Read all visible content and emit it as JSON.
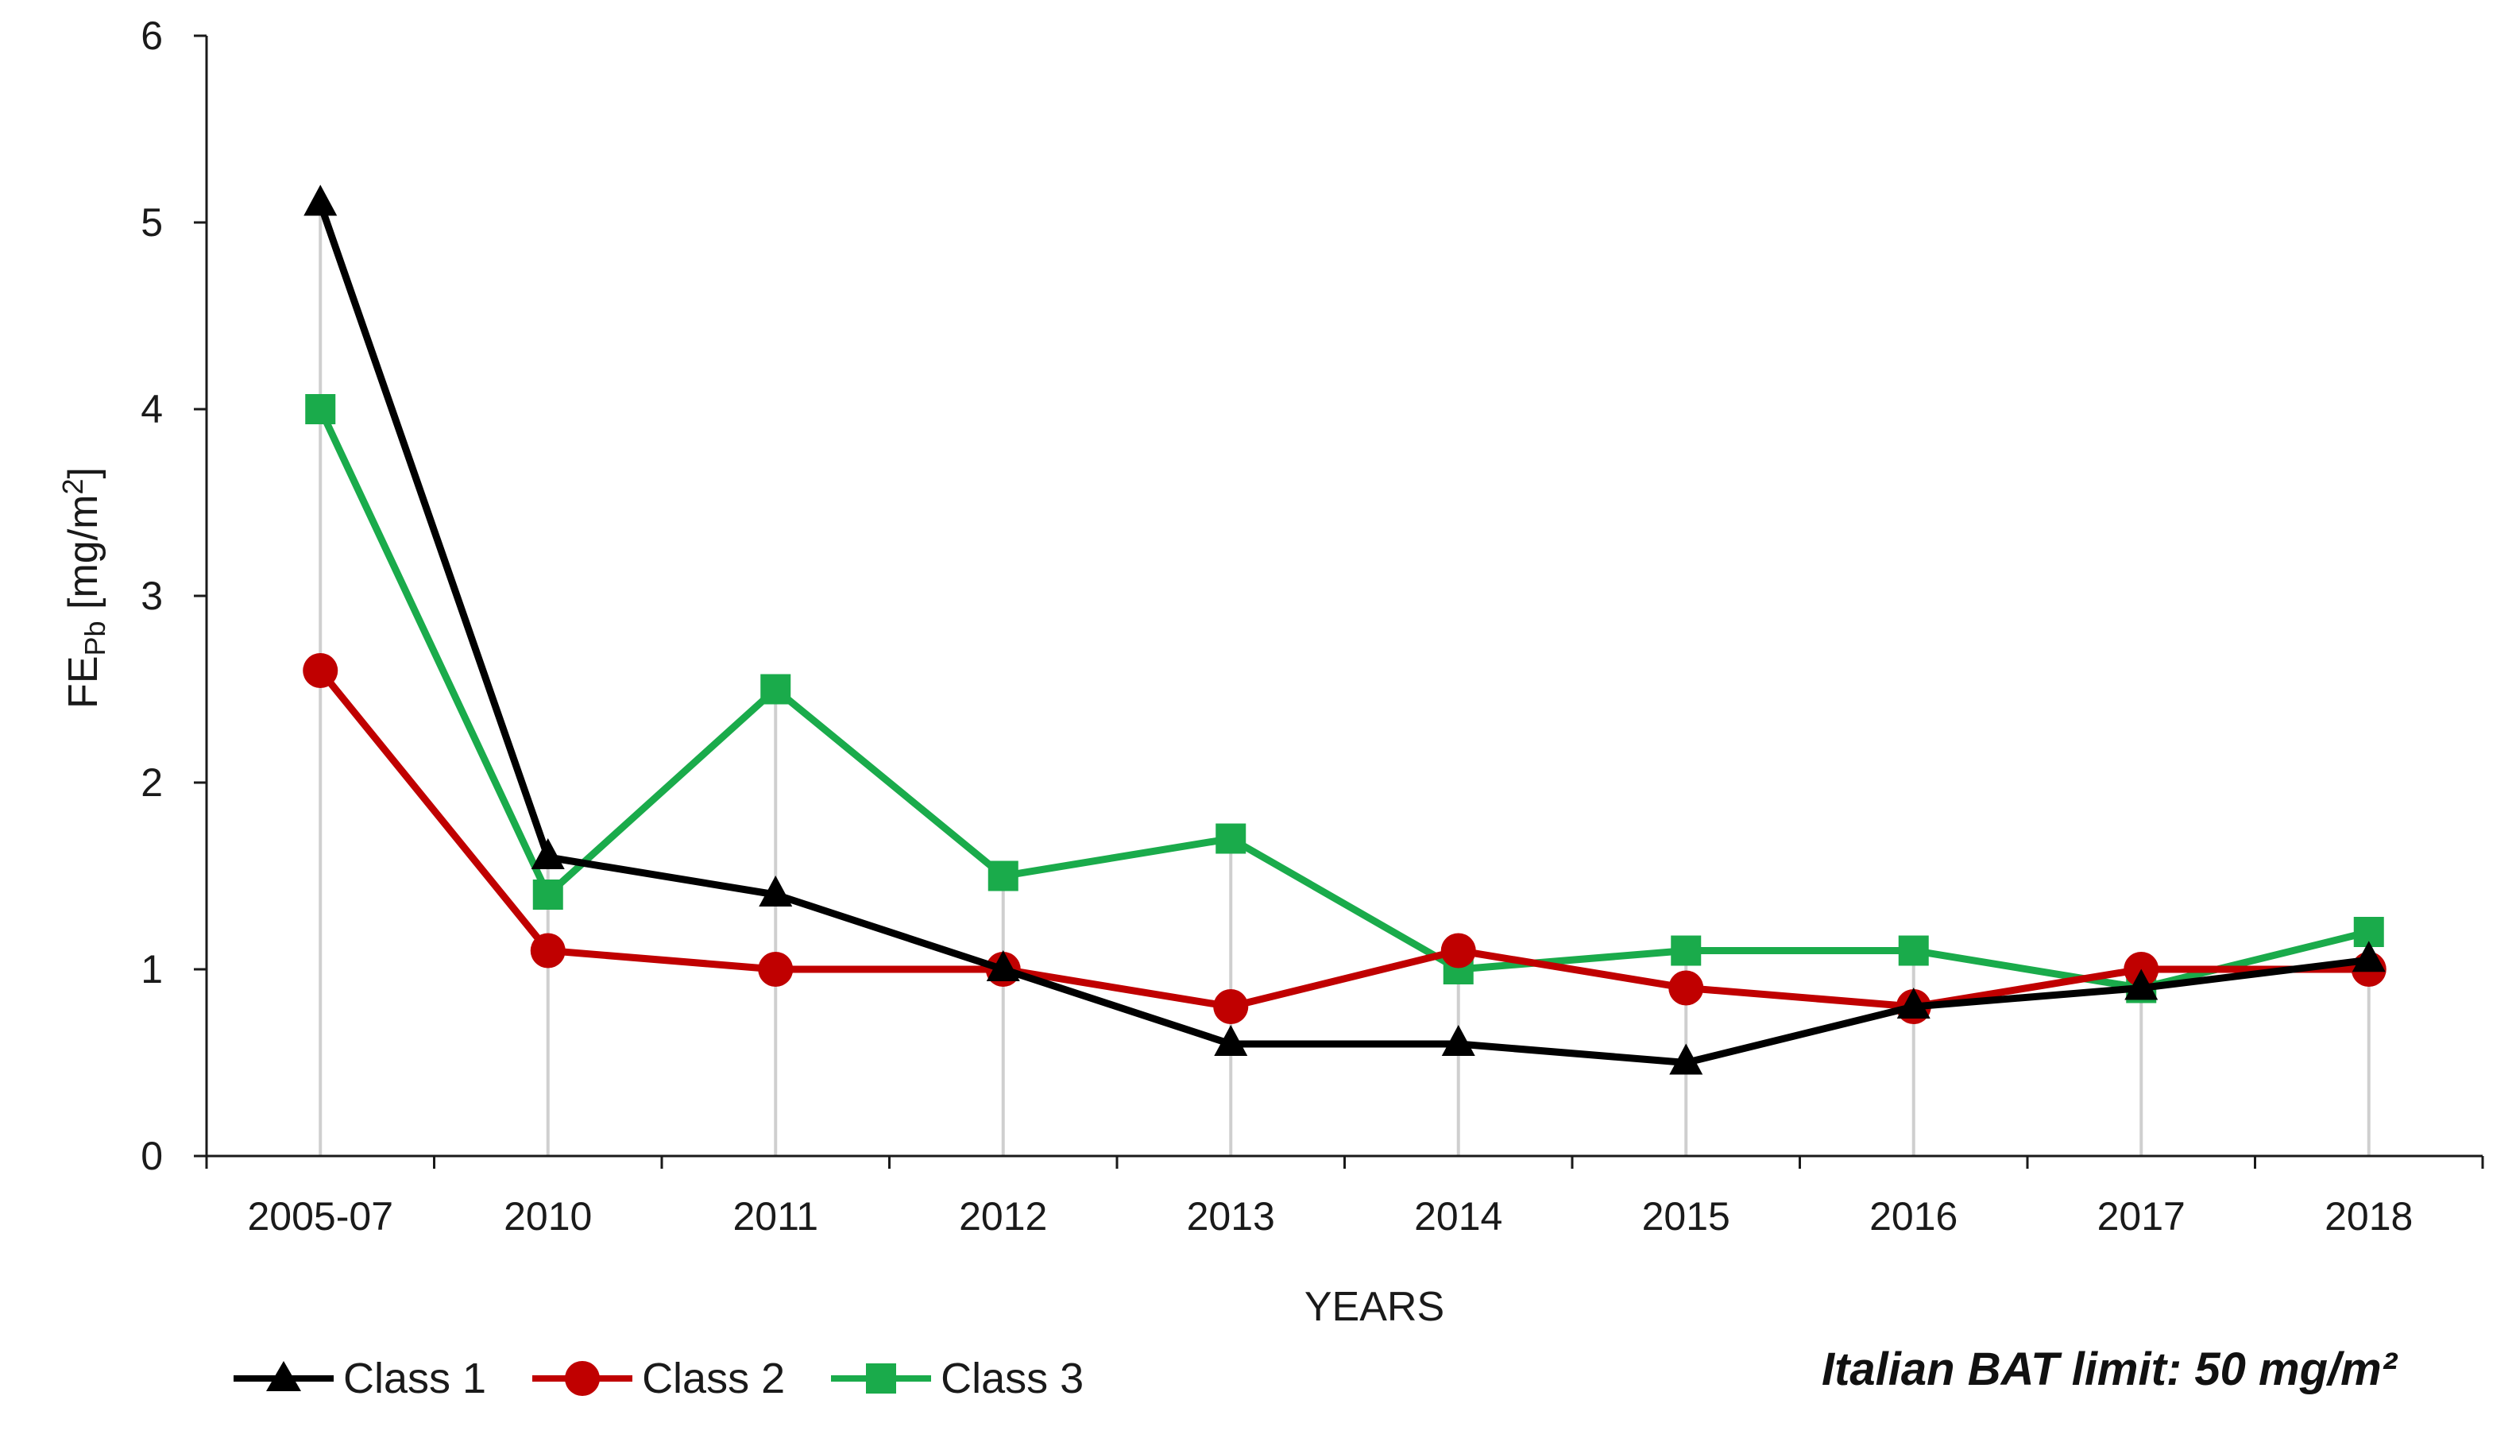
{
  "chart_data": {
    "type": "line",
    "title": "",
    "xlabel": "YEARS",
    "ylabel": {
      "main": "FE",
      "sub": "Pb",
      "unit_open": " [mg/m",
      "unit_sup": "2",
      "unit_close": "]"
    },
    "categories": [
      "2005-07",
      "2010",
      "2011",
      "2012",
      "2013",
      "2014",
      "2015",
      "2016",
      "2017",
      "2018"
    ],
    "ylim": [
      0,
      6
    ],
    "yticks": [
      0,
      1,
      2,
      3,
      4,
      5,
      6
    ],
    "grid": "vertical drop lines at each category",
    "legend_position": "bottom-left",
    "series": [
      {
        "name": "Class 1",
        "color": "#000000",
        "marker": "triangle",
        "values": [
          5.1,
          1.6,
          1.4,
          1.0,
          0.6,
          0.6,
          0.5,
          0.8,
          0.9,
          1.05
        ]
      },
      {
        "name": "Class 2",
        "color": "#c00000",
        "marker": "circle",
        "values": [
          2.6,
          1.1,
          1.0,
          1.0,
          0.8,
          1.1,
          0.9,
          0.8,
          1.0,
          1.0
        ]
      },
      {
        "name": "Class 3",
        "color": "#1aab4b",
        "marker": "square",
        "values": [
          4.0,
          1.4,
          2.5,
          1.5,
          1.7,
          1.0,
          1.1,
          1.1,
          0.9,
          1.2
        ]
      }
    ],
    "annotation": "Italian BAT limit: 50 mg/m²"
  }
}
